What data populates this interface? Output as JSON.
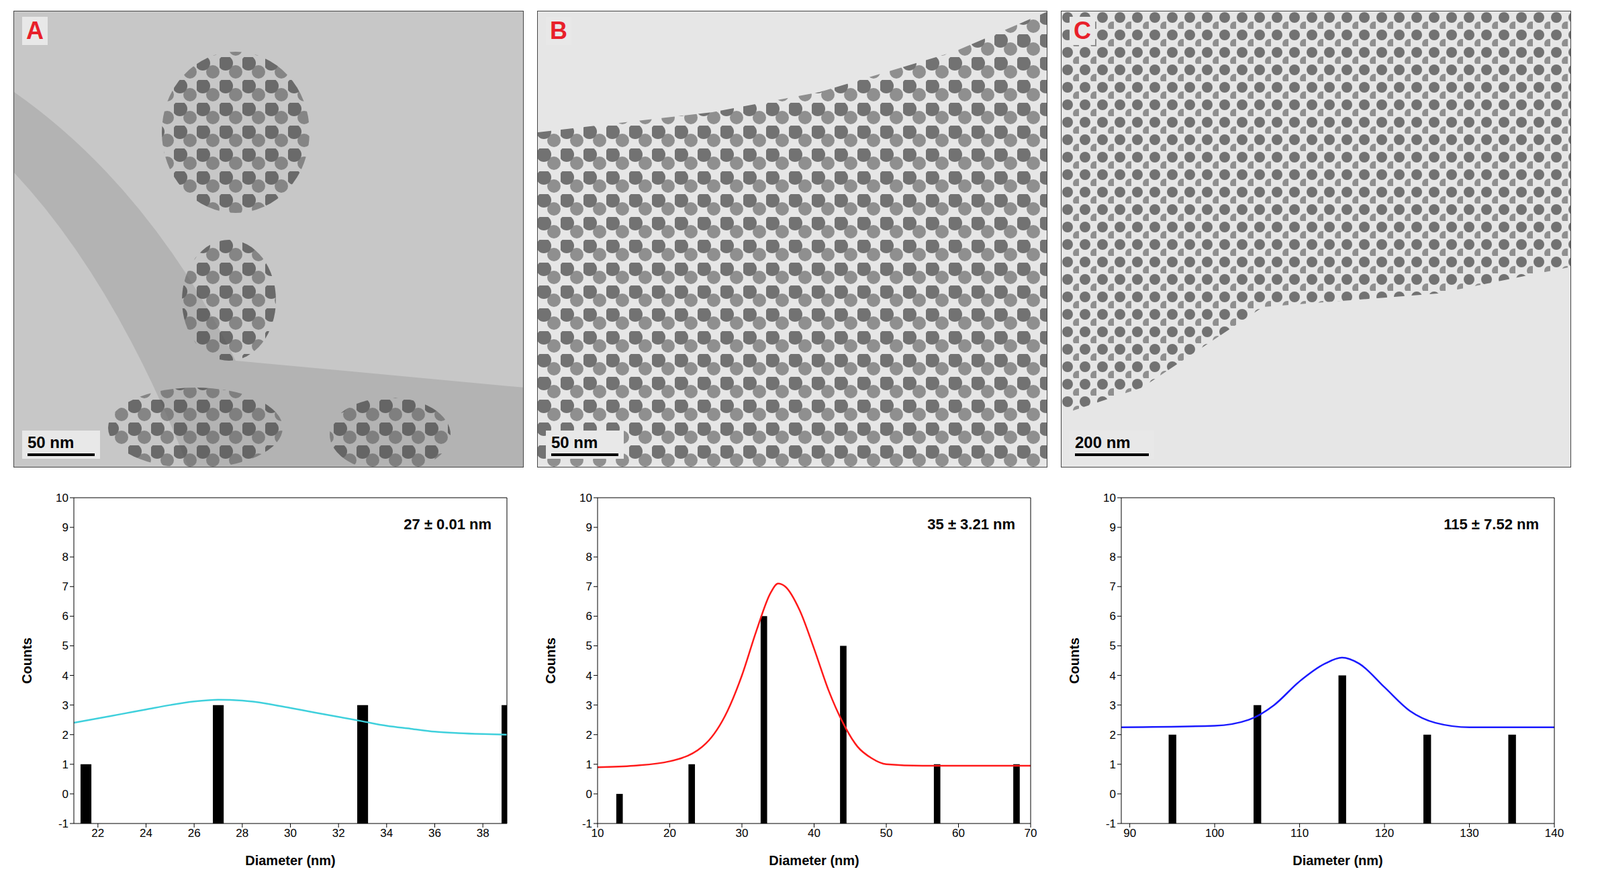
{
  "images": [
    {
      "label": "A",
      "scale_bar": "50 nm"
    },
    {
      "label": "B",
      "scale_bar": "50 nm"
    },
    {
      "label": "C",
      "scale_bar": "200 nm"
    }
  ],
  "chart_data": [
    {
      "type": "bar",
      "annotations": [
        "27 ± 0.01 nm"
      ],
      "x_label": "Diameter (nm)",
      "y_label": "Counts",
      "xlim": [
        21,
        39
      ],
      "xticks": [
        22,
        24,
        26,
        28,
        30,
        32,
        34,
        36,
        38
      ],
      "ylim": [
        -1,
        10
      ],
      "yticks": [
        -1,
        0,
        1,
        2,
        3,
        4,
        5,
        6,
        7,
        8,
        9,
        10
      ],
      "series": [
        {
          "type": "bar",
          "color": "#000000",
          "x": [
            21.5,
            27,
            33,
            39
          ],
          "values": [
            1,
            3,
            3,
            3
          ]
        },
        {
          "type": "line",
          "color": "#3fd0dc",
          "x": [
            21,
            22,
            23,
            24,
            25,
            26,
            27,
            28,
            29,
            30,
            31,
            32,
            33,
            34,
            35,
            36,
            37,
            38,
            39
          ],
          "values": [
            2.4,
            2.55,
            2.7,
            2.85,
            3.0,
            3.12,
            3.18,
            3.15,
            3.05,
            2.9,
            2.75,
            2.6,
            2.45,
            2.3,
            2.2,
            2.1,
            2.05,
            2.02,
            2.0
          ]
        }
      ]
    },
    {
      "type": "bar",
      "annotations": [
        "35 ± 3.21 nm"
      ],
      "x_label": "Diameter (nm)",
      "y_label": "Counts",
      "xlim": [
        10,
        70
      ],
      "xticks": [
        10,
        20,
        30,
        40,
        50,
        60,
        70
      ],
      "ylim": [
        -1,
        10
      ],
      "yticks": [
        -1,
        0,
        1,
        2,
        3,
        4,
        5,
        6,
        7,
        8,
        9,
        10
      ],
      "series": [
        {
          "type": "bar",
          "color": "#000000",
          "x": [
            13,
            23,
            33,
            44,
            57,
            68
          ],
          "values": [
            0,
            1,
            6,
            5,
            1,
            1
          ]
        },
        {
          "type": "line",
          "color": "#ff1a1a",
          "x": [
            10,
            15,
            20,
            25,
            28,
            30,
            32,
            34,
            35,
            36,
            38,
            40,
            42,
            44,
            46,
            48,
            50,
            55,
            60,
            70
          ],
          "values": [
            0.9,
            0.95,
            1.1,
            1.7,
            2.8,
            4.0,
            5.5,
            6.8,
            7.1,
            7.0,
            6.2,
            4.9,
            3.5,
            2.4,
            1.6,
            1.2,
            1.0,
            0.95,
            0.95,
            0.95
          ]
        }
      ]
    },
    {
      "type": "bar",
      "annotations": [
        "115 ± 7.52 nm"
      ],
      "x_label": "Diameter (nm)",
      "y_label": "Counts",
      "xlim": [
        89,
        140
      ],
      "xticks": [
        90,
        100,
        110,
        120,
        130,
        140
      ],
      "ylim": [
        -1,
        10
      ],
      "yticks": [
        -1,
        0,
        1,
        2,
        3,
        4,
        5,
        6,
        7,
        8,
        9,
        10
      ],
      "series": [
        {
          "type": "bar",
          "color": "#000000",
          "x": [
            95,
            105,
            115,
            125,
            135
          ],
          "values": [
            2,
            3,
            4,
            2,
            2
          ]
        },
        {
          "type": "line",
          "color": "#1a1aff",
          "x": [
            89,
            100,
            104,
            107,
            110,
            113,
            115,
            117,
            120,
            123,
            126,
            130,
            140
          ],
          "values": [
            2.25,
            2.3,
            2.5,
            3.0,
            3.8,
            4.4,
            4.6,
            4.4,
            3.6,
            2.8,
            2.4,
            2.25,
            2.25
          ]
        }
      ]
    }
  ]
}
